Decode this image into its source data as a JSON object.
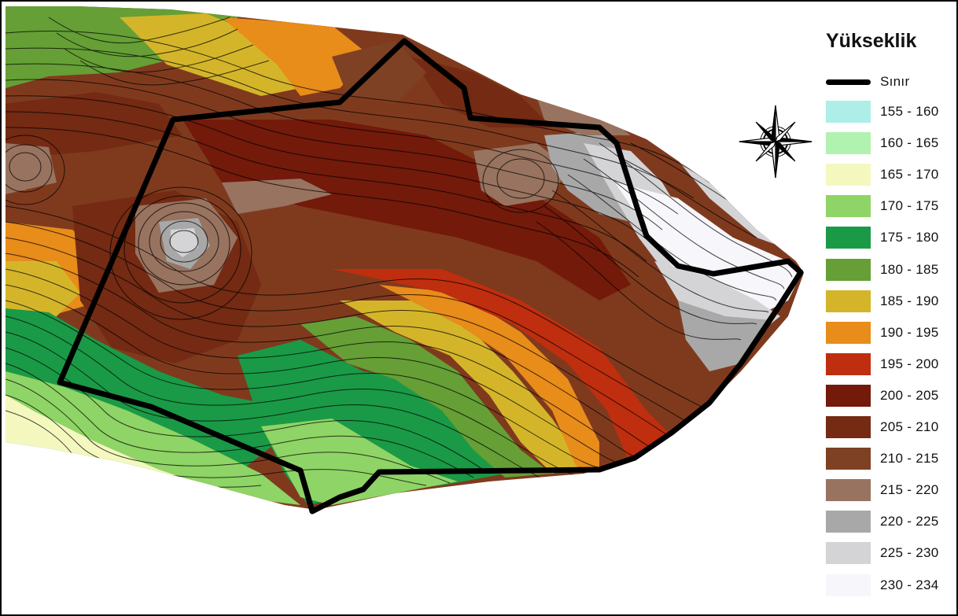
{
  "legend": {
    "title": "Yükseklik",
    "boundary_label": "Sınır",
    "classes": [
      {
        "label": "155 - 160",
        "color": "#aeeee8"
      },
      {
        "label": "160 - 165",
        "color": "#b2f2b0"
      },
      {
        "label": "165 - 170",
        "color": "#f4f8bf"
      },
      {
        "label": "170 - 175",
        "color": "#8fd466"
      },
      {
        "label": "175 - 180",
        "color": "#1a9a46"
      },
      {
        "label": "180 - 185",
        "color": "#659f36"
      },
      {
        "label": "185 - 190",
        "color": "#d4b52a"
      },
      {
        "label": "190 - 195",
        "color": "#e88c1a"
      },
      {
        "label": "195 - 200",
        "color": "#bf2e0e"
      },
      {
        "label": "200 - 205",
        "color": "#731a0a"
      },
      {
        "label": "205 - 210",
        "color": "#742a13"
      },
      {
        "label": "210 - 215",
        "color": "#7f4124"
      },
      {
        "label": "215 - 220",
        "color": "#98735f"
      },
      {
        "label": "220 - 225",
        "color": "#a8a8a8"
      },
      {
        "label": "225 - 230",
        "color": "#d4d4d6"
      },
      {
        "label": "230 - 234",
        "color": "#f7f6fb"
      }
    ]
  },
  "map": {
    "compass_icon": "compass-rose-icon",
    "boundary_color": "#000000"
  }
}
